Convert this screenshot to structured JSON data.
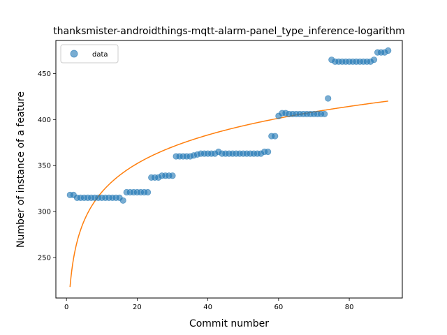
{
  "chart_data": {
    "type": "scatter",
    "title": "thanksmister-androidthings-mqtt-alarm-panel_type_inference-logarithm",
    "xlabel": "Commit number",
    "ylabel": "Number of instance of a feature",
    "xlim": [
      -3,
      95
    ],
    "ylim": [
      206,
      486
    ],
    "xticks": [
      0,
      20,
      40,
      60,
      80
    ],
    "yticks": [
      250,
      300,
      350,
      400,
      450
    ],
    "grid": false,
    "legend_position": "top-left",
    "series": [
      {
        "name": "data",
        "kind": "scatter",
        "color": "#1f77b4",
        "x": [
          1,
          2,
          3,
          4,
          5,
          6,
          7,
          8,
          9,
          10,
          11,
          12,
          13,
          14,
          15,
          16,
          17,
          18,
          19,
          20,
          21,
          22,
          23,
          24,
          25,
          26,
          27,
          28,
          29,
          30,
          31,
          32,
          33,
          34,
          35,
          36,
          37,
          38,
          39,
          40,
          41,
          42,
          43,
          44,
          45,
          46,
          47,
          48,
          49,
          50,
          51,
          52,
          53,
          54,
          55,
          56,
          57,
          58,
          59,
          60,
          61,
          62,
          63,
          64,
          65,
          66,
          67,
          68,
          69,
          70,
          71,
          72,
          73,
          74,
          75,
          76,
          77,
          78,
          79,
          80,
          81,
          82,
          83,
          84,
          85,
          86,
          87,
          88,
          89,
          90,
          91
        ],
        "y": [
          318,
          318,
          315,
          315,
          315,
          315,
          315,
          315,
          315,
          315,
          315,
          315,
          315,
          315,
          315,
          312,
          321,
          321,
          321,
          321,
          321,
          321,
          321,
          337,
          337,
          337,
          339,
          339,
          339,
          339,
          360,
          360,
          360,
          360,
          360,
          361,
          362,
          363,
          363,
          363,
          363,
          363,
          365,
          363,
          363,
          363,
          363,
          363,
          363,
          363,
          363,
          363,
          363,
          363,
          363,
          365,
          365,
          382,
          382,
          404,
          407,
          407,
          406,
          406,
          406,
          406,
          406,
          406,
          406,
          406,
          406,
          406,
          406,
          423,
          465,
          463,
          463,
          463,
          463,
          463,
          463,
          463,
          463,
          463,
          463,
          463,
          465,
          473,
          473,
          473,
          475
        ]
      },
      {
        "name": "",
        "kind": "line",
        "color": "#ff7f0e",
        "model": "logarithmic",
        "a": 218,
        "b": 44.8,
        "x_range": [
          1,
          91
        ]
      }
    ]
  }
}
